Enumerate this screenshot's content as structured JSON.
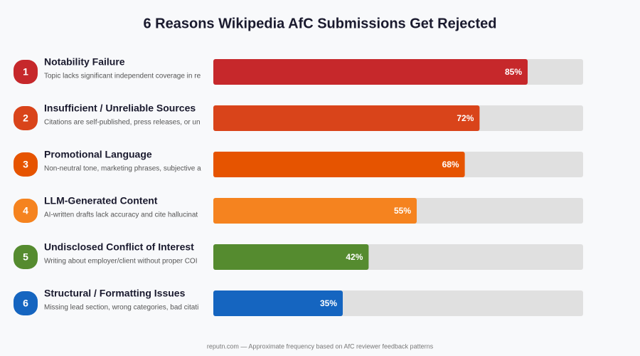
{
  "chart_data": {
    "type": "bar",
    "title": "6 Reasons Wikipedia AfC Submissions Get Rejected",
    "ranks": [
      "1",
      "2",
      "3",
      "4",
      "5",
      "6"
    ],
    "categories": [
      "Notability Failure",
      "Insufficient / Unreliable Sources",
      "Promotional Language",
      "LLM-Generated Content",
      "Undisclosed Conflict of Interest",
      "Structural / Formatting Issues"
    ],
    "descriptions": [
      "Topic lacks significant independent coverage in re",
      "Citations are self-published, press releases, or un",
      "Non-neutral tone, marketing phrases, subjective a",
      "AI-written drafts lack accuracy and cite hallucinat",
      "Writing about employer/client without proper COI",
      "Missing lead section, wrong categories, bad citati"
    ],
    "values": [
      85,
      72,
      68,
      55,
      42,
      35
    ],
    "value_labels": [
      "85%",
      "72%",
      "68%",
      "55%",
      "42%",
      "35%"
    ],
    "colors": [
      "#c6282b",
      "#d9441a",
      "#e65400",
      "#f5831f",
      "#558b2f",
      "#1565c0"
    ],
    "xlim": [
      0,
      100
    ],
    "note": "reputn.com — Approximate frequency based on AfC reviewer feedback patterns"
  }
}
